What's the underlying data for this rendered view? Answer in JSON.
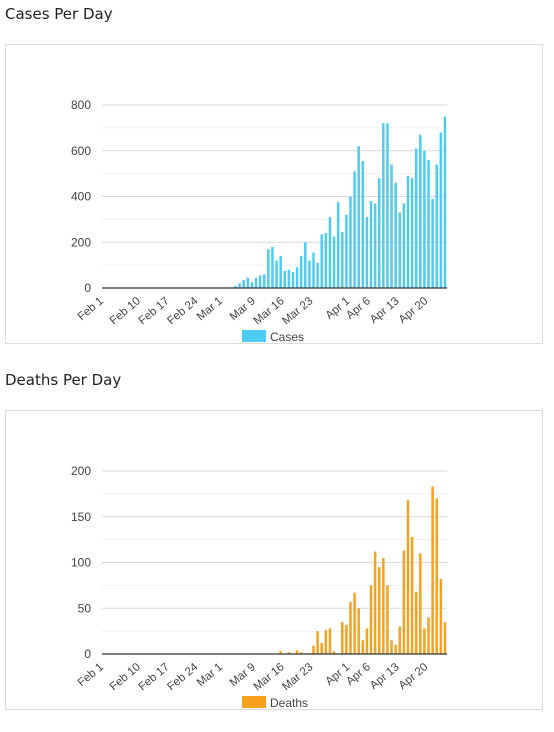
{
  "page": {
    "charts": [
      {
        "title": "Cases Per Day",
        "chart_key": "cases",
        "legend_label": "Cases",
        "color": "#4ecbf0"
      },
      {
        "title": "Deaths Per Day",
        "chart_key": "deaths",
        "legend_label": "Deaths",
        "color": "#f7a01e"
      }
    ]
  },
  "chart_data": [
    {
      "type": "bar",
      "title": "Cases Per Day",
      "xlabel": "",
      "ylabel": "",
      "ylim": [
        0,
        800
      ],
      "yticks": [
        0,
        200,
        400,
        600,
        800
      ],
      "grid": true,
      "legend": "bottom",
      "x_tick_labels": [
        "Feb 1",
        "Feb 10",
        "Feb 17",
        "Feb 24",
        "Mar 1",
        "Mar 9",
        "Mar 16",
        "Mar 23",
        "Apr 1",
        "Apr 6",
        "Apr 13",
        "Apr 20"
      ],
      "x_tick_days": [
        "2020-02-01",
        "2020-02-10",
        "2020-02-17",
        "2020-02-24",
        "2020-03-01",
        "2020-03-09",
        "2020-03-16",
        "2020-03-23",
        "2020-04-01",
        "2020-04-06",
        "2020-04-13",
        "2020-04-20"
      ],
      "series": [
        {
          "name": "Cases",
          "color": "#4ecbf0",
          "dates": [
            "2020-03-04",
            "2020-03-05",
            "2020-03-06",
            "2020-03-07",
            "2020-03-08",
            "2020-03-09",
            "2020-03-10",
            "2020-03-11",
            "2020-03-12",
            "2020-03-13",
            "2020-03-14",
            "2020-03-15",
            "2020-03-16",
            "2020-03-17",
            "2020-03-18",
            "2020-03-19",
            "2020-03-20",
            "2020-03-21",
            "2020-03-22",
            "2020-03-23",
            "2020-03-24",
            "2020-03-25",
            "2020-03-26",
            "2020-03-27",
            "2020-03-28",
            "2020-03-29",
            "2020-03-30",
            "2020-03-31",
            "2020-04-01",
            "2020-04-02",
            "2020-04-03",
            "2020-04-04",
            "2020-04-05",
            "2020-04-06",
            "2020-04-07",
            "2020-04-08",
            "2020-04-09",
            "2020-04-10",
            "2020-04-11",
            "2020-04-12",
            "2020-04-13",
            "2020-04-14",
            "2020-04-15",
            "2020-04-16",
            "2020-04-17",
            "2020-04-18",
            "2020-04-19",
            "2020-04-20",
            "2020-04-21",
            "2020-04-22",
            "2020-04-23",
            "2020-04-24"
          ],
          "values": [
            10,
            20,
            35,
            45,
            25,
            45,
            55,
            60,
            170,
            180,
            120,
            140,
            75,
            80,
            70,
            90,
            140,
            200,
            120,
            155,
            110,
            235,
            240,
            310,
            225,
            375,
            245,
            320,
            400,
            510,
            620,
            555,
            310,
            380,
            370,
            480,
            720,
            720,
            540,
            460,
            330,
            370,
            490,
            480,
            610,
            670,
            600,
            560,
            390,
            540,
            680,
            750
          ]
        }
      ]
    },
    {
      "type": "bar",
      "title": "Deaths Per Day",
      "xlabel": "",
      "ylabel": "",
      "ylim": [
        0,
        200
      ],
      "yticks": [
        0,
        50,
        100,
        150,
        200
      ],
      "grid": true,
      "legend": "bottom",
      "x_tick_labels": [
        "Feb 1",
        "Feb 10",
        "Feb 17",
        "Feb 24",
        "Mar 1",
        "Mar 9",
        "Mar 16",
        "Mar 23",
        "Apr 1",
        "Apr 6",
        "Apr 13",
        "Apr 20"
      ],
      "x_tick_days": [
        "2020-02-01",
        "2020-02-10",
        "2020-02-17",
        "2020-02-24",
        "2020-03-01",
        "2020-03-09",
        "2020-03-16",
        "2020-03-23",
        "2020-04-01",
        "2020-04-06",
        "2020-04-13",
        "2020-04-20"
      ],
      "series": [
        {
          "name": "Deaths",
          "color": "#f7a01e",
          "dates": [
            "2020-03-15",
            "2020-03-17",
            "2020-03-19",
            "2020-03-20",
            "2020-03-22",
            "2020-03-23",
            "2020-03-24",
            "2020-03-25",
            "2020-03-26",
            "2020-03-27",
            "2020-03-28",
            "2020-03-30",
            "2020-03-31",
            "2020-04-01",
            "2020-04-02",
            "2020-04-03",
            "2020-04-04",
            "2020-04-05",
            "2020-04-06",
            "2020-04-07",
            "2020-04-08",
            "2020-04-09",
            "2020-04-10",
            "2020-04-11",
            "2020-04-12",
            "2020-04-13",
            "2020-04-14",
            "2020-04-15",
            "2020-04-16",
            "2020-04-17",
            "2020-04-18",
            "2020-04-19",
            "2020-04-20",
            "2020-04-21",
            "2020-04-22",
            "2020-04-23",
            "2020-04-24"
          ],
          "values": [
            3,
            2,
            4,
            2,
            1,
            9,
            25,
            12,
            26,
            28,
            3,
            35,
            32,
            57,
            67,
            50,
            15,
            28,
            75,
            112,
            95,
            105,
            75,
            15,
            10,
            30,
            113,
            168,
            128,
            68,
            110,
            28,
            40,
            183,
            170,
            82,
            35
          ]
        }
      ]
    }
  ]
}
